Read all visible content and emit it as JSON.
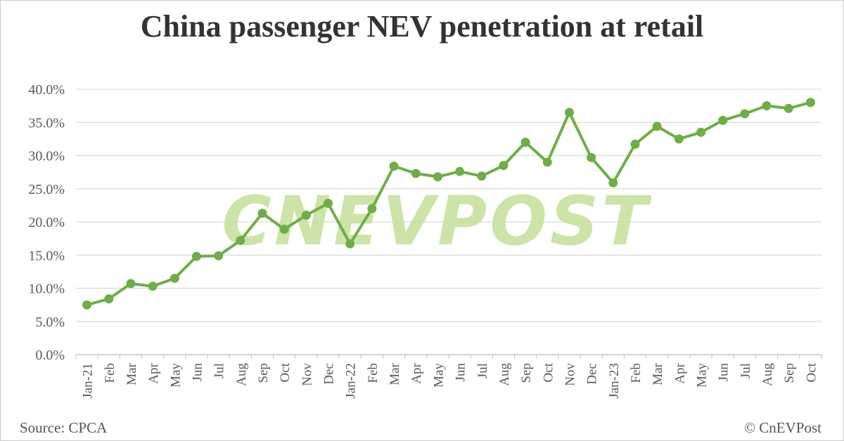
{
  "chart_data": {
    "type": "line",
    "title": "China passenger NEV penetration at retail",
    "xlabel": "",
    "ylabel": "",
    "categories": [
      "Jan-21",
      "Feb",
      "Mar",
      "Apr",
      "May",
      "Jun",
      "Jul",
      "Aug",
      "Sep",
      "Oct",
      "Nov",
      "Dec",
      "Jan-22",
      "Feb",
      "Mar",
      "Apr",
      "May",
      "Jun",
      "Jul",
      "Aug",
      "Sep",
      "Oct",
      "Nov",
      "Dec",
      "Jan-23",
      "Feb",
      "Mar",
      "Apr",
      "May",
      "Jun",
      "Jul",
      "Aug",
      "Sep",
      "Oct"
    ],
    "values": [
      7.5,
      8.4,
      10.7,
      10.3,
      11.5,
      14.8,
      14.9,
      17.2,
      21.3,
      18.9,
      21.0,
      22.8,
      16.7,
      22.0,
      28.4,
      27.3,
      26.8,
      27.6,
      26.9,
      28.5,
      32.0,
      29.0,
      36.5,
      29.7,
      25.9,
      31.7,
      34.4,
      32.5,
      33.5,
      35.3,
      36.3,
      37.5,
      37.1,
      38.0
    ],
    "yticks": [
      "0.0%",
      "5.0%",
      "10.0%",
      "15.0%",
      "20.0%",
      "25.0%",
      "30.0%",
      "35.0%",
      "40.0%"
    ],
    "ylim": [
      0,
      40
    ],
    "grid": true,
    "legend": "none",
    "color": "#70ad47"
  },
  "footer": {
    "source": "Source: CPCA",
    "credit": "© CnEVPost"
  },
  "watermark": "CNEVPOST"
}
